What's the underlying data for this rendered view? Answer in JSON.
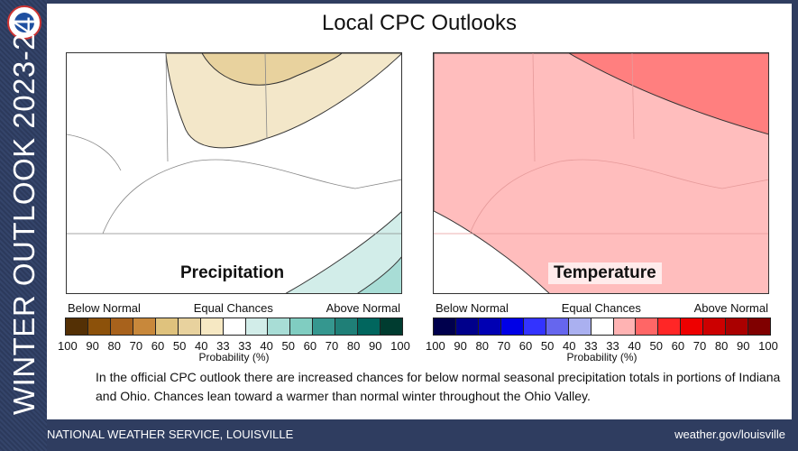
{
  "sidebar": {
    "title": "WINTER OUTLOOK 2023-24",
    "logo": "noaa-nws-logo"
  },
  "header": {
    "title": "Local CPC Outlooks"
  },
  "maps": [
    {
      "label": "Precipitation",
      "colorbar": {
        "below": "Below Normal",
        "equal": "Equal Chances",
        "above": "Above Normal",
        "ticks": [
          "100",
          "90",
          "80",
          "70",
          "60",
          "50",
          "40",
          "33",
          "33",
          "40",
          "50",
          "60",
          "70",
          "80",
          "90",
          "100"
        ],
        "unit": "Probability (%)",
        "colors": [
          "#543005",
          "#8c510a",
          "#a8621c",
          "#c8883b",
          "#dfc27d",
          "#e8d29e",
          "#f6e8c3",
          "#ffffff",
          "#d2ede9",
          "#a8ddd6",
          "#80cdc1",
          "#35978f",
          "#1f7f77",
          "#01665e",
          "#003c30"
        ]
      }
    },
    {
      "label": "Temperature",
      "colorbar": {
        "below": "Below Normal",
        "equal": "Equal Chances",
        "above": "Above Normal",
        "ticks": [
          "100",
          "90",
          "80",
          "70",
          "60",
          "50",
          "40",
          "33",
          "33",
          "40",
          "50",
          "60",
          "70",
          "80",
          "90",
          "100"
        ],
        "unit": "Probability (%)",
        "colors": [
          "#00004d",
          "#00008b",
          "#0000b3",
          "#0000e6",
          "#3333ff",
          "#6666ee",
          "#aab0f0",
          "#ffffff",
          "#ffb3b3",
          "#ff6666",
          "#ff2626",
          "#ee0000",
          "#cc0000",
          "#aa0000",
          "#800000"
        ]
      }
    }
  ],
  "description": "In the official CPC outlook there are increased chances for below normal seasonal precipitation totals in portions of Indiana and Ohio. Chances lean toward a warmer than normal winter throughout the Ohio Valley.",
  "footer": {
    "left": "NATIONAL WEATHER SERVICE, LOUISVILLE",
    "right": "weather.gov/louisville"
  }
}
